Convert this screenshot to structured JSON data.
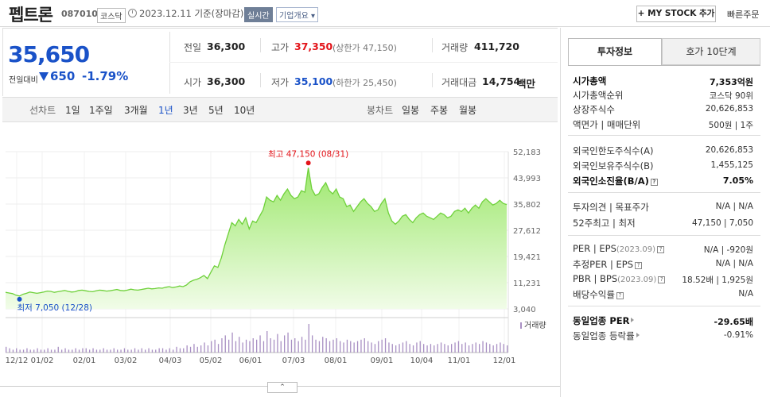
{
  "header": {
    "name": "펩트론",
    "code": "087010",
    "market": "코스닥",
    "basis": "2023.12.11 기준(장마감)",
    "realtime": "실시간",
    "overview": "기업개요 ▾",
    "mystock": "+ MY STOCK 추가",
    "quick_order": "빠른주문"
  },
  "price": {
    "current": "35,650",
    "change_label": "전일대비",
    "change_value": "650",
    "change_rate": "-1.79%"
  },
  "quote": {
    "prev_label": "전일",
    "prev": "36,300",
    "high_label": "고가",
    "high": "37,350",
    "upper_limit": "(상한가 47,150)",
    "volume_label": "거래량",
    "volume": "411,720",
    "open_label": "시가",
    "open": "36,300",
    "low_label": "저가",
    "low": "35,100",
    "lower_limit": "(하한가 25,450)",
    "amount_label": "거래대금",
    "amount": "14,754",
    "amount_unit": "백만"
  },
  "chart_tabs": {
    "line_head": "선차트",
    "line": [
      "1일",
      "1주일",
      "3개월",
      "1년",
      "3년",
      "5년",
      "10년"
    ],
    "selected": "1년",
    "candle_head": "봉차트",
    "candle": [
      "일봉",
      "주봉",
      "월봉"
    ]
  },
  "chart_data": {
    "type": "area",
    "y_ticks": [
      "52,183",
      "43,993",
      "35,802",
      "27,612",
      "19,421",
      "11,231",
      "3,040"
    ],
    "ylim": [
      3040,
      52183
    ],
    "x_ticks": [
      "12/12",
      "01/02",
      "02/01",
      "03/02",
      "04/03",
      "05/02",
      "06/01",
      "07/03",
      "08/01",
      "09/01",
      "10/04",
      "11/01",
      "12/01"
    ],
    "high_label": "최고 47,150 (08/31)",
    "low_label": "최저 7,050 (12/28)",
    "high_value": 47150,
    "low_value": 7050,
    "volume_label": "거래량",
    "series": [
      {
        "values": [
          8200,
          8000,
          7800,
          7300,
          7050,
          7600,
          7900,
          8300,
          8100,
          7900,
          8100,
          8300,
          8600,
          8500,
          8200,
          8400,
          8600,
          8800,
          8500,
          8300,
          8400,
          8800,
          8900,
          8700,
          8500,
          8400,
          8700,
          8900,
          8800,
          8600,
          8700,
          8900,
          9100,
          8800,
          8700,
          8900,
          9200,
          9000,
          8900,
          9100,
          9300,
          9500,
          9300,
          9400,
          9600,
          9500,
          9800,
          10000,
          9700,
          9900,
          10200,
          10000,
          10500,
          11500,
          12000,
          12300,
          12800,
          13500,
          12500,
          14500,
          16500,
          16000,
          19000,
          23000,
          26500,
          30000,
          29000,
          31000,
          29500,
          31500,
          28000,
          30500,
          30000,
          32000,
          34000,
          38000,
          37000,
          36500,
          38500,
          37000,
          39000,
          40500,
          38500,
          37500,
          38000,
          40000,
          39500,
          47150,
          40500,
          38500,
          39000,
          41000,
          42500,
          40000,
          39000,
          40500,
          38000,
          37500,
          35000,
          35500,
          33500,
          35000,
          36500,
          37500,
          36000,
          35000,
          33500,
          34000,
          36000,
          37500,
          33000,
          30500,
          29500,
          30500,
          32000,
          32500,
          31000,
          30000,
          31500,
          32500,
          33000,
          32000,
          31500,
          31000,
          32000,
          33000,
          32500,
          31500,
          32000,
          33500,
          34000,
          33500,
          34500,
          33000,
          34500,
          35500,
          34500,
          36500,
          37500,
          36500,
          35500,
          36000,
          37000,
          36000,
          35650
        ]
      }
    ],
    "volume_values": [
      4,
      3,
      2,
      3,
      2,
      2,
      3,
      2,
      2,
      3,
      2,
      2,
      3,
      2,
      2,
      4,
      2,
      3,
      2,
      2,
      3,
      2,
      3,
      3,
      2,
      3,
      2,
      2,
      3,
      2,
      2,
      3,
      2,
      2,
      3,
      2,
      2,
      3,
      2,
      3,
      2,
      3,
      2,
      2,
      3,
      3,
      2,
      3,
      2,
      4,
      3,
      3,
      5,
      4,
      6,
      4,
      5,
      7,
      5,
      8,
      9,
      6,
      10,
      12,
      9,
      14,
      8,
      11,
      7,
      9,
      8,
      10,
      9,
      12,
      8,
      15,
      10,
      9,
      13,
      8,
      12,
      14,
      9,
      10,
      8,
      11,
      9,
      20,
      12,
      9,
      8,
      11,
      10,
      8,
      9,
      10,
      8,
      7,
      9,
      8,
      7,
      8,
      9,
      10,
      8,
      7,
      6,
      8,
      9,
      10,
      7,
      6,
      5,
      6,
      7,
      8,
      6,
      5,
      7,
      8,
      6,
      5,
      6,
      5,
      6,
      7,
      6,
      5,
      6,
      7,
      8,
      6,
      7,
      5,
      6,
      7,
      6,
      8,
      7,
      6,
      5,
      6,
      7,
      6,
      5
    ]
  },
  "invest": {
    "tab_invest": "투자정보",
    "tab_hoga": "호가 10단계",
    "rows": [
      {
        "label": "시가총액",
        "value": "7,353억원"
      },
      {
        "label": "시가총액순위",
        "value": "코스닥 90위"
      },
      {
        "label": "상장주식수",
        "value": "20,626,853"
      },
      {
        "label": "액면가 | 매매단위",
        "value": "500원 | 1주"
      },
      {
        "label": "외국인한도주식수(A)",
        "value": "20,626,853"
      },
      {
        "label": "외국인보유주식수(B)",
        "value": "1,455,125"
      },
      {
        "label": "외국인소진율(B/A)",
        "value": "7.05%"
      },
      {
        "label": "투자의견 | 목표주가",
        "value": "N/A | N/A"
      },
      {
        "label": "52주최고 | 최저",
        "value": "47,150 | 7,050"
      },
      {
        "label": "PER",
        "sep": " | ",
        "label2": "EPS",
        "sub": "(2023.09)",
        "value": "N/A | -920원"
      },
      {
        "label": "추정PER | EPS",
        "value": "N/A | N/A"
      },
      {
        "label": "PBR",
        "sep": " | ",
        "label2": "BPS",
        "sub": "(2023.09)",
        "value": "18.52배 | 1,925원"
      },
      {
        "label": "배당수익률",
        "value": "N/A"
      },
      {
        "label": "동일업종 PER",
        "value": "-29.65배"
      },
      {
        "label": "동일업종 등락률",
        "value": "-0.91%"
      }
    ]
  },
  "collapse": "⌃"
}
